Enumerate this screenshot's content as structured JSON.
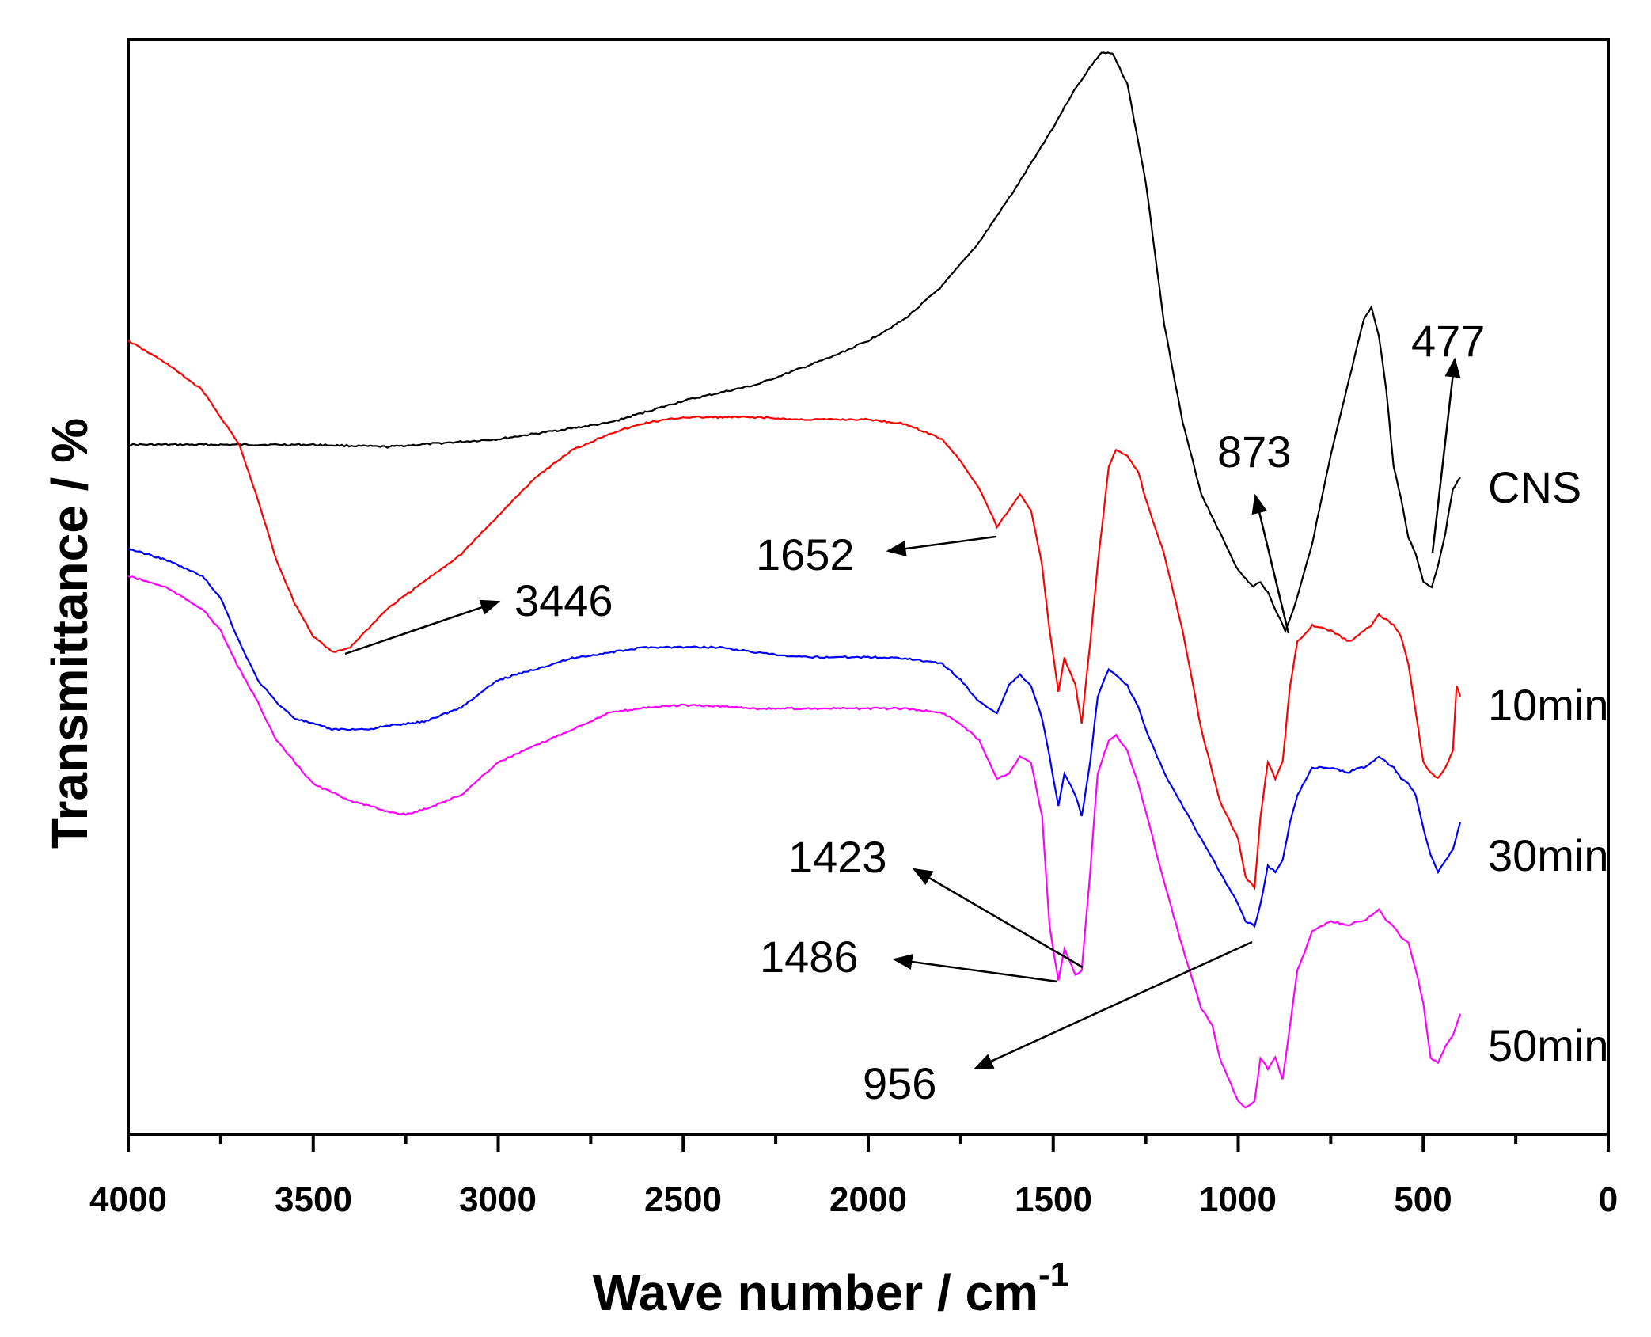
{
  "chart_data": {
    "type": "line",
    "title": "",
    "xlabel": "Wave number / cm",
    "xlabel_superscript": "-1",
    "ylabel": "Transmittance / %",
    "xlim": [
      4000,
      0
    ],
    "ylim": [
      0,
      100
    ],
    "x_ticks": [
      "4000",
      "3500",
      "3000",
      "2500",
      "2000",
      "1500",
      "1000",
      "500",
      "0"
    ],
    "x_tick_values": [
      4000,
      3500,
      3000,
      2500,
      2000,
      1500,
      1000,
      500,
      0
    ],
    "y_ticks_shown": false,
    "grid": false,
    "series": [
      {
        "name": "CNS",
        "color": "#000000",
        "x": [
          4000,
          3700,
          3500,
          3300,
          3000,
          2700,
          2500,
          2300,
          2100,
          2000,
          1900,
          1800,
          1700,
          1600,
          1500,
          1450,
          1400,
          1370,
          1340,
          1300,
          1250,
          1200,
          1150,
          1100,
          1050,
          1000,
          960,
          940,
          920,
          900,
          873,
          850,
          800,
          750,
          700,
          660,
          640,
          620,
          600,
          580,
          560,
          540,
          520,
          500,
          477,
          460,
          440,
          420,
          400
        ],
        "y": [
          63,
          63,
          63,
          62.8,
          63.5,
          65,
          67,
          68.5,
          71,
          72.5,
          74.5,
          77.5,
          81.5,
          86.5,
          92,
          95,
          97.5,
          98.8,
          98.7,
          96,
          87,
          74,
          65,
          58.5,
          55,
          51.5,
          50,
          50.5,
          49.5,
          48,
          46,
          48,
          54,
          62,
          69,
          74.5,
          75.5,
          73,
          68,
          61,
          58,
          54.5,
          53,
          50.5,
          50,
          52,
          55,
          59,
          60
        ]
      },
      {
        "name": "10min",
        "color": "#ff0000",
        "x": [
          4000,
          3900,
          3800,
          3700,
          3650,
          3600,
          3550,
          3500,
          3446,
          3400,
          3300,
          3200,
          3100,
          3000,
          2900,
          2800,
          2700,
          2600,
          2500,
          2400,
          2300,
          2200,
          2100,
          2000,
          1900,
          1800,
          1750,
          1700,
          1652,
          1620,
          1590,
          1560,
          1530,
          1510,
          1486,
          1470,
          1440,
          1423,
          1400,
          1380,
          1350,
          1330,
          1300,
          1270,
          1250,
          1200,
          1150,
          1100,
          1050,
          1000,
          980,
          956,
          940,
          920,
          900,
          880,
          860,
          840,
          800,
          750,
          700,
          680,
          660,
          640,
          620,
          600,
          580,
          560,
          540,
          520,
          500,
          480,
          460,
          440,
          420,
          410,
          400
        ],
        "y": [
          72.5,
          70.5,
          68,
          63,
          58,
          52.5,
          48.5,
          45.5,
          44,
          44.5,
          48,
          50.5,
          53,
          56.5,
          60,
          62.5,
          64,
          65,
          65.5,
          65.5,
          65.5,
          65.3,
          65.3,
          65.3,
          64.9,
          63.5,
          61.5,
          59,
          55.5,
          57,
          58.5,
          57,
          52,
          46,
          40.5,
          43.5,
          41,
          37.5,
          45,
          52,
          61,
          62.5,
          62,
          60.5,
          58,
          53,
          46,
          37,
          30.5,
          27,
          23.5,
          22.5,
          29,
          34,
          32.5,
          34,
          41,
          45,
          46.5,
          46,
          45,
          45.5,
          46,
          46.5,
          47.5,
          47,
          46.5,
          45.5,
          43,
          38.5,
          34,
          33,
          32.5,
          33.5,
          35,
          41,
          40
        ]
      },
      {
        "name": "30min",
        "color": "#0000ff",
        "x": [
          4000,
          3900,
          3800,
          3750,
          3700,
          3650,
          3600,
          3550,
          3500,
          3450,
          3400,
          3350,
          3300,
          3200,
          3100,
          3000,
          2900,
          2800,
          2700,
          2600,
          2500,
          2400,
          2300,
          2200,
          2100,
          2000,
          1900,
          1800,
          1750,
          1700,
          1652,
          1620,
          1590,
          1560,
          1530,
          1510,
          1486,
          1470,
          1440,
          1423,
          1400,
          1380,
          1350,
          1330,
          1300,
          1270,
          1250,
          1200,
          1150,
          1100,
          1050,
          1000,
          980,
          956,
          940,
          920,
          900,
          880,
          860,
          840,
          800,
          750,
          700,
          680,
          660,
          640,
          620,
          600,
          580,
          560,
          540,
          520,
          500,
          480,
          460,
          440,
          420,
          400
        ],
        "y": [
          53.5,
          52.5,
          51,
          49,
          45,
          41.5,
          39.5,
          38,
          37.5,
          37,
          37,
          37,
          37.3,
          37.7,
          39,
          41.5,
          42.5,
          43.5,
          44,
          44.5,
          44.5,
          44.5,
          44,
          43.6,
          43.6,
          43.6,
          43.5,
          43,
          41.5,
          39.5,
          38.5,
          41,
          42,
          41,
          38,
          34.5,
          30,
          33,
          31,
          29,
          34,
          40,
          42.5,
          42,
          41,
          39,
          37,
          33,
          30,
          27,
          24,
          21,
          19.5,
          19,
          21,
          24.5,
          24,
          25,
          28.5,
          31,
          33.5,
          33.5,
          33,
          33.5,
          33.5,
          34,
          34.5,
          34,
          33.5,
          32.5,
          32,
          31,
          28,
          25.5,
          24,
          25,
          26,
          28.5
        ]
      },
      {
        "name": "50min",
        "color": "#ff00ff",
        "x": [
          4000,
          3900,
          3800,
          3750,
          3700,
          3650,
          3600,
          3500,
          3400,
          3300,
          3250,
          3200,
          3100,
          3050,
          3000,
          2900,
          2800,
          2700,
          2600,
          2500,
          2400,
          2300,
          2200,
          2100,
          2000,
          1900,
          1800,
          1750,
          1700,
          1652,
          1620,
          1590,
          1560,
          1530,
          1510,
          1486,
          1470,
          1440,
          1423,
          1400,
          1380,
          1350,
          1330,
          1300,
          1270,
          1250,
          1200,
          1150,
          1100,
          1070,
          1050,
          1000,
          980,
          956,
          940,
          920,
          900,
          880,
          860,
          840,
          800,
          750,
          700,
          680,
          660,
          640,
          620,
          600,
          580,
          560,
          540,
          520,
          500,
          480,
          460,
          440,
          420,
          400
        ],
        "y": [
          51,
          50,
          48,
          46,
          42.5,
          39.5,
          36,
          32,
          30.5,
          29.5,
          29.2,
          29.7,
          31,
          32.5,
          34,
          35.5,
          37,
          38.5,
          39,
          39.2,
          39.1,
          38.9,
          38.9,
          38.9,
          38.9,
          38.9,
          38.5,
          37.5,
          36,
          32.5,
          33,
          34.5,
          34,
          29,
          19,
          14,
          17,
          14.5,
          15,
          24,
          33,
          36,
          36.5,
          35,
          32,
          29.5,
          23,
          17,
          11.5,
          10,
          7,
          3,
          2.5,
          3,
          7,
          6,
          7,
          5,
          10,
          15,
          18.5,
          19.5,
          19,
          19.5,
          19.5,
          20,
          20.5,
          19.5,
          19,
          18,
          17.5,
          15,
          12,
          7,
          6.5,
          8,
          9,
          11
        ]
      }
    ],
    "legend": [
      "CNS",
      "10min",
      "30min",
      "50min"
    ],
    "annotations": [
      {
        "label": "3446",
        "peak_x": 3446
      },
      {
        "label": "1652",
        "peak_x": 1652
      },
      {
        "label": "1486",
        "peak_x": 1486
      },
      {
        "label": "1423",
        "peak_x": 1423
      },
      {
        "label": "956",
        "peak_x": 956
      },
      {
        "label": "873",
        "peak_x": 873
      },
      {
        "label": "477",
        "peak_x": 477
      }
    ]
  }
}
